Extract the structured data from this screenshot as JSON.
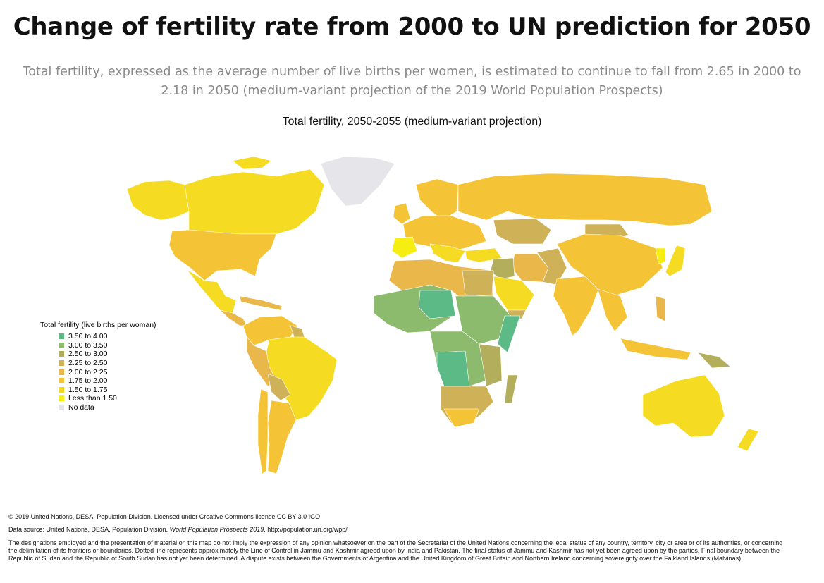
{
  "title": "Change of fertility rate from 2000 to UN prediction for 2050",
  "subtitle": "Total fertility, expressed as the average number of live births per women, is estimated to continue to fall from 2.65 in 2000 to 2.18 in 2050 (medium-variant projection of the 2019 World Population Prospects)",
  "map_title": "Total fertility, 2050-2055 (medium-variant projection)",
  "legend": {
    "title": "Total fertility (live births per woman)",
    "items": [
      {
        "label": "3.50 to 4.00",
        "color": "#5cba86"
      },
      {
        "label": "3.00 to 3.50",
        "color": "#8cbb6e"
      },
      {
        "label": "2.50 to 3.00",
        "color": "#b2ae5c"
      },
      {
        "label": "2.25 to 2.50",
        "color": "#cfb258"
      },
      {
        "label": "2.00 to 2.25",
        "color": "#eab84a"
      },
      {
        "label": "1.75 to 2.00",
        "color": "#f5c436"
      },
      {
        "label": "1.50 to 1.75",
        "color": "#f5dc22"
      },
      {
        "label": "Less than 1.50",
        "color": "#f5ee10"
      },
      {
        "label": "No data",
        "color": "#e6e6ea"
      }
    ]
  },
  "footer": {
    "copyright": "© 2019 United Nations, DESA, Population Division. Licensed under Creative Commons license CC BY 3.0 IGO.",
    "source_prefix": "Data source: United Nations, DESA, Population Division.",
    "source_title": "World Population Prospects 2019",
    "source_suffix": ". http://population.un.org/wpp/",
    "disclaimer": "The designations employed and the presentation of material on this map do not imply the expression of any opinion whatsoever on the part of the Secretariat of the United Nations concerning the legal status of any country, territory, city or area or of its authorities, or concerning the delimitation of its frontiers or boundaries. Dotted line represents approximately the Line of Control in Jammu and Kashmir agreed upon by India and Pakistan. The final status of Jammu and Kashmir has not yet been agreed upon by the parties. Final boundary between the Republic of Sudan and the Republic of South Sudan has not yet been determined. A dispute exists between the Governments of Argentina and the United Kingdom of Great Britain and Northern Ireland concerning sovereignty over the Falkland Islands (Malvinas)."
  }
}
